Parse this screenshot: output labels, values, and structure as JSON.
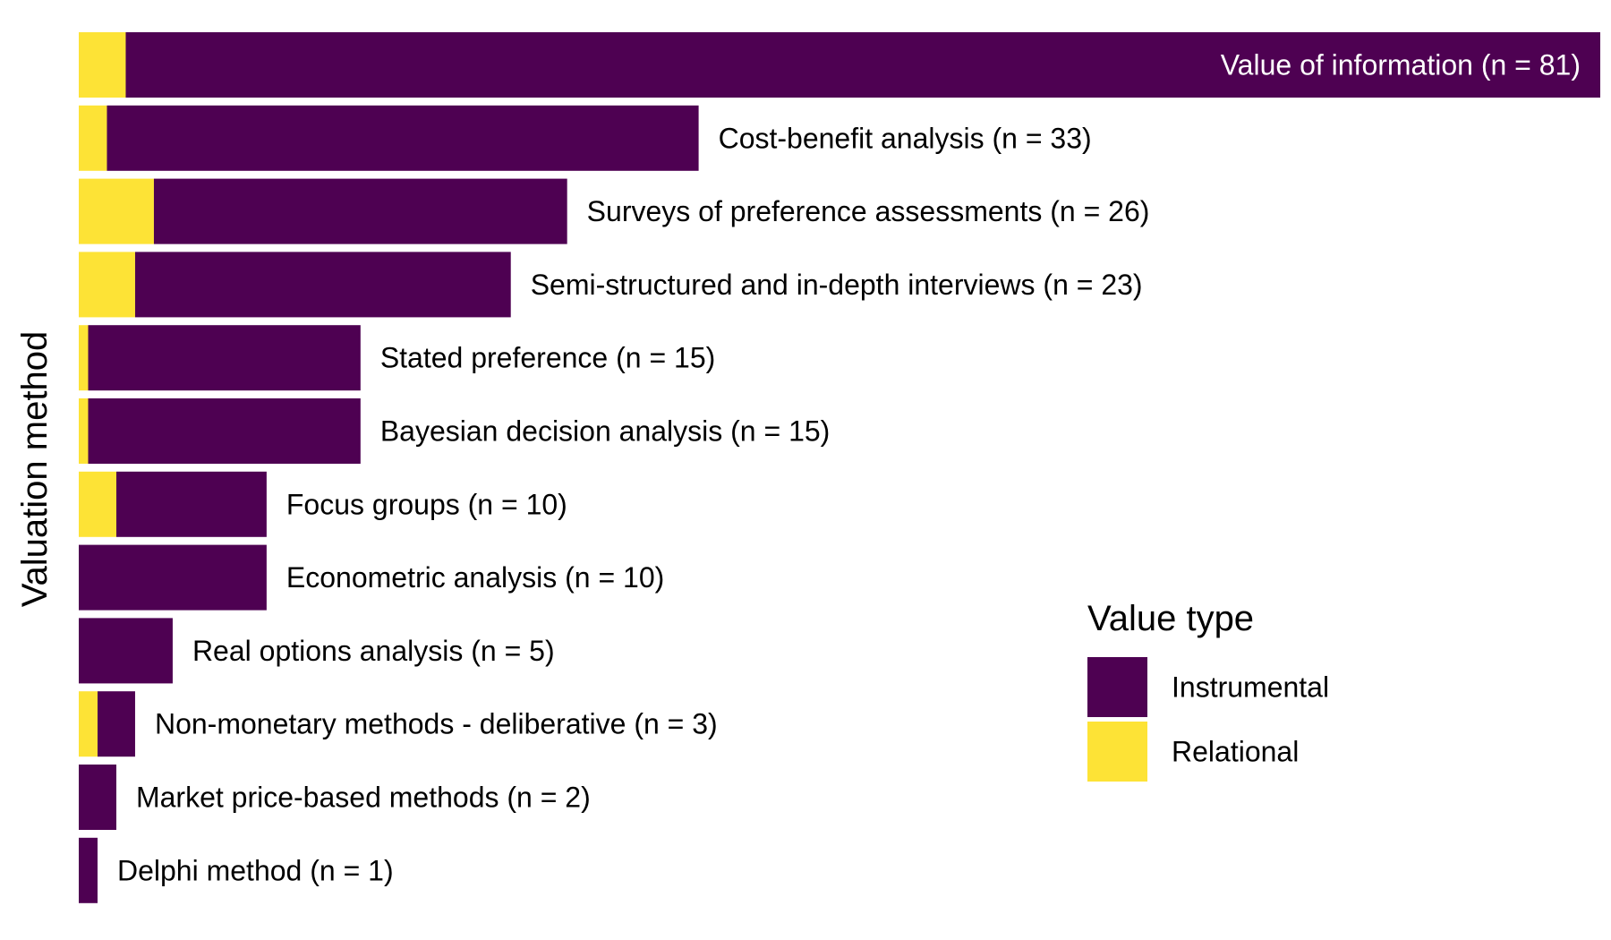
{
  "chart_data": {
    "type": "bar",
    "orientation": "horizontal",
    "stacked": true,
    "ylabel": "Valuation method",
    "xlabel": "",
    "xlim": [
      0,
      81
    ],
    "grid": false,
    "legend": {
      "title": "Value type",
      "position": "bottom-right",
      "entries": [
        {
          "name": "Instrumental",
          "color": "#440154"
        },
        {
          "name": "Relational",
          "color": "#FDE725"
        }
      ]
    },
    "colors": {
      "instrumental": "#4E0152",
      "relational": "#FDE336",
      "inside_label": "#FFFFFF",
      "outside_label": "#000000"
    },
    "categories": [
      "Value of information (n = 81)",
      "Cost-benefit analysis (n = 33)",
      "Surveys of preference assessments (n = 26)",
      "Semi-structured and in-depth interviews (n = 23)",
      "Stated preference (n = 15)",
      "Bayesian decision analysis (n = 15)",
      "Focus groups (n = 10)",
      "Econometric analysis (n = 10)",
      "Real options analysis (n = 5)",
      "Non-monetary methods - deliberative (n = 3)",
      "Market price-based methods (n = 2)",
      "Delphi method (n = 1)"
    ],
    "totals": [
      81,
      33,
      26,
      23,
      15,
      15,
      10,
      10,
      5,
      3,
      2,
      1
    ],
    "series": [
      {
        "name": "Relational",
        "values": [
          2.5,
          1.5,
          4,
          3,
          0.5,
          0.5,
          2,
          0,
          0,
          1,
          0,
          0
        ]
      },
      {
        "name": "Instrumental",
        "values": [
          78.5,
          31.5,
          22,
          20,
          14.5,
          14.5,
          8,
          10,
          5,
          2,
          2,
          1
        ]
      }
    ]
  }
}
